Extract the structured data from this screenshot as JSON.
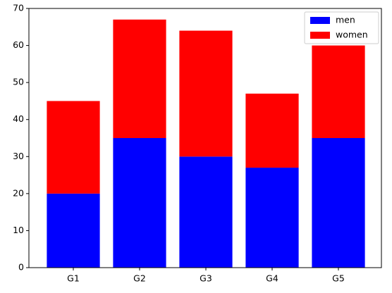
{
  "chart_data": {
    "type": "stacked_bar",
    "categories": [
      "G1",
      "G2",
      "G3",
      "G4",
      "G5"
    ],
    "series": [
      {
        "name": "men",
        "color": "#0000ff",
        "values": [
          20,
          35,
          30,
          27,
          35
        ]
      },
      {
        "name": "women",
        "color": "#ff0000",
        "values": [
          25,
          32,
          34,
          20,
          25
        ]
      }
    ],
    "ylim": [
      0,
      70
    ],
    "yticks": [
      0,
      10,
      20,
      30,
      40,
      50,
      60,
      70
    ],
    "grid": false,
    "legend": "upper-right"
  }
}
